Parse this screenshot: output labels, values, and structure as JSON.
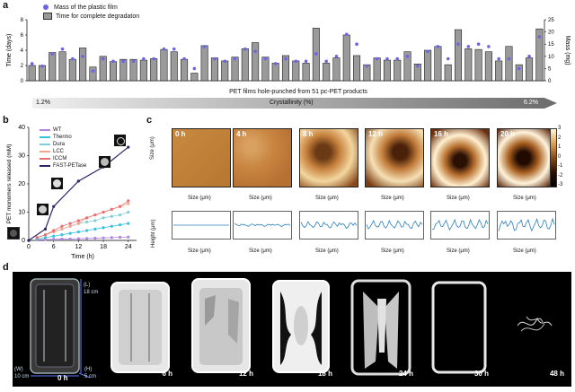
{
  "panels": {
    "a": {
      "letter": "a",
      "legend": [
        "Mass of the plastic film",
        "Time for complete degradaton"
      ],
      "left_axis_label": "Time (days)",
      "right_axis_label": "Mass (mg)",
      "x_caption": "PET films hole-punched from 51 pc-PET products",
      "crystallinity_label": "Crystallinity (%)",
      "crystallinity_low": "1.2%",
      "crystallinity_high": "6.2%"
    },
    "b": {
      "letter": "b",
      "xlabel": "Time (h)",
      "ylabel": "PET monomers released (mM)",
      "legend": [
        "WT",
        "Thermo",
        "Dura",
        "LCC",
        "ICCM",
        "FAST-PETase"
      ]
    },
    "c": {
      "letter": "c",
      "times": [
        "0 h",
        "4 h",
        "8 h",
        "12 h",
        "16 h",
        "20 h"
      ],
      "afm_ylabel": "Size (μm)",
      "afm_xlabel": "Size (μm)",
      "profile_ylabel": "Height (μm)",
      "profile_xlabel": "Size (μm)",
      "colorbar_ticks": [
        "3",
        "2",
        "1",
        "0",
        "-1",
        "-2",
        "-3"
      ]
    },
    "d": {
      "letter": "d",
      "times": [
        "0 h",
        "6 h",
        "12 h",
        "18 h",
        "24 h",
        "30 h",
        "48 h"
      ],
      "dim_length": "18 cm",
      "dim_width": "10 cm",
      "dim_height": "5 cm",
      "dim_l": "(L)",
      "dim_w": "(W)",
      "dim_h": "(H)"
    }
  },
  "chart_data": [
    {
      "type": "bar",
      "title": "",
      "ylabel": "Time (days)",
      "y2label": "Mass (mg)",
      "ylim": [
        0,
        8
      ],
      "y2lim": [
        0,
        25
      ],
      "series": [
        {
          "name": "Time for complete degradaton",
          "values": [
            2,
            2,
            3.7,
            3.8,
            2.8,
            4.3,
            1.8,
            3.2,
            2.5,
            2.8,
            2.8,
            2.7,
            2.9,
            4.1,
            3.8,
            2.8,
            1,
            4.6,
            3,
            2.6,
            3.1,
            4.2,
            5,
            3.1,
            2.3,
            3.3,
            2.6,
            2.3,
            6.9,
            2.3,
            3,
            6,
            3.3,
            2.1,
            3,
            2.7,
            2.7,
            3.8,
            2.2,
            4,
            4.5,
            2.1,
            6.7,
            4.2,
            4.1,
            3.8,
            2.6,
            4.5,
            2.1,
            3,
            6.8
          ]
        },
        {
          "name": "Mass of the plastic film",
          "values": [
            7,
            6,
            11,
            13,
            9,
            10,
            4,
            9,
            8,
            8,
            8,
            9,
            9,
            13,
            13,
            9,
            5,
            14,
            9,
            8,
            9,
            13,
            12,
            9,
            7,
            9,
            8,
            8,
            11,
            8,
            10,
            19,
            15,
            6,
            9,
            9,
            9,
            10,
            6,
            12,
            14,
            9,
            15,
            14,
            15,
            14,
            9,
            9,
            5,
            10,
            18
          ]
        }
      ]
    },
    {
      "type": "scatter",
      "xlabel": "Time (h)",
      "ylabel": "PET monomers released (mM)",
      "xlim": [
        0,
        26
      ],
      "ylim": [
        0,
        40
      ],
      "x_ticks": [
        0,
        6,
        12,
        18,
        24
      ],
      "y_ticks": [
        0,
        10,
        20,
        30,
        40
      ],
      "series": [
        {
          "name": "WT",
          "color": "#b084e0",
          "x": [
            2,
            4,
            6,
            8,
            10,
            12,
            14,
            16,
            18,
            20,
            22,
            24
          ],
          "y": [
            0.2,
            0.3,
            0.4,
            0.5,
            0.5,
            0.6,
            0.7,
            0.8,
            0.9,
            1,
            1.1,
            1.2
          ]
        },
        {
          "name": "Thermo",
          "color": "#36c0e0",
          "x": [
            2,
            4,
            6,
            8,
            10,
            12,
            14,
            16,
            18,
            20,
            22,
            24
          ],
          "y": [
            0.5,
            1,
            1.5,
            2,
            2.5,
            3,
            3.5,
            4,
            4.5,
            5,
            5.5,
            6
          ]
        },
        {
          "name": "Dura",
          "color": "#7ecfd6",
          "x": [
            2,
            4,
            6,
            8,
            10,
            12,
            14,
            16,
            18,
            20,
            22,
            24
          ],
          "y": [
            1,
            2,
            3,
            4,
            5,
            6,
            6.5,
            7,
            8,
            8.5,
            9,
            10
          ]
        },
        {
          "name": "LCC",
          "color": "#f4a38e",
          "x": [
            2,
            4,
            6,
            8,
            10,
            12,
            14,
            16,
            18,
            20,
            22,
            24
          ],
          "y": [
            1,
            2,
            3,
            4,
            5,
            6,
            8,
            9,
            10,
            11,
            12,
            13
          ]
        },
        {
          "name": "ICCM",
          "color": "#e76f6f",
          "x": [
            2,
            4,
            6,
            8,
            10,
            12,
            14,
            16,
            18,
            20,
            22,
            24
          ],
          "y": [
            1,
            2,
            3.5,
            5,
            6,
            7,
            8,
            9,
            10,
            11,
            12,
            14
          ]
        },
        {
          "name": "FAST-PETase",
          "color": "#2e2366",
          "x": [
            0,
            4,
            6,
            12,
            18,
            24
          ],
          "y": [
            0,
            4,
            12,
            21,
            26,
            33
          ]
        }
      ]
    }
  ]
}
